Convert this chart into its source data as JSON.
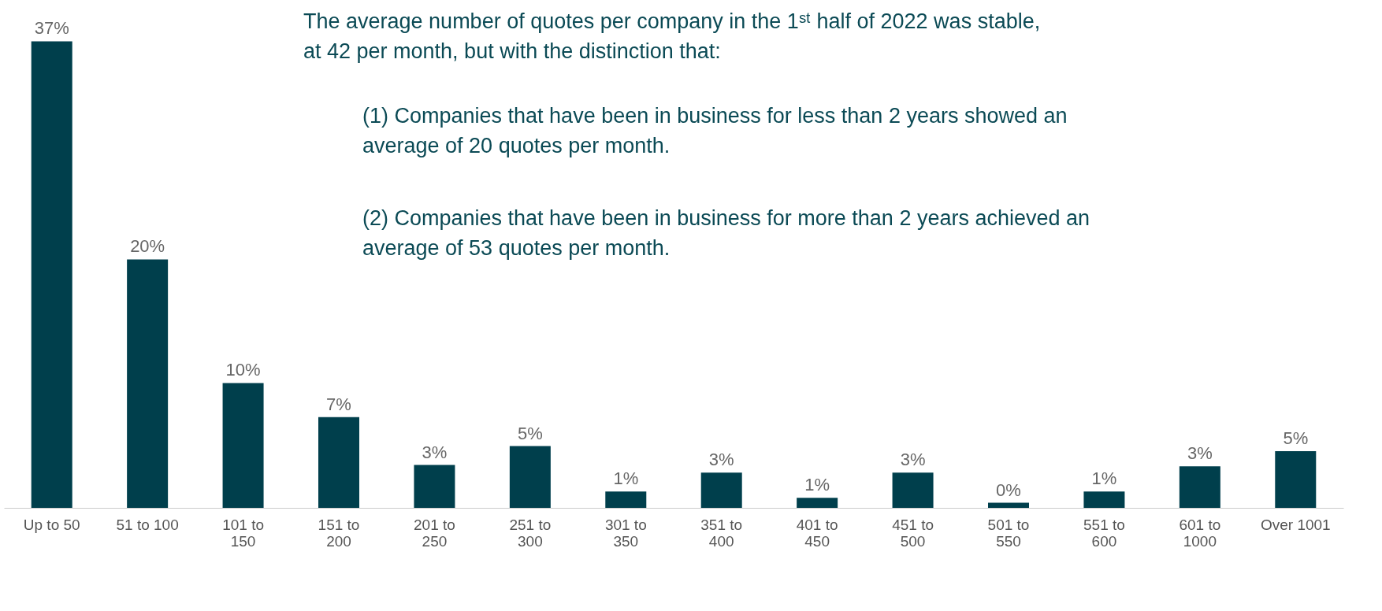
{
  "chart_data": {
    "type": "bar",
    "categories": [
      "Up to 50",
      "51 to 100",
      "101 to 150",
      "151 to 200",
      "201 to 250",
      "251 to 300",
      "301 to 350",
      "351 to 400",
      "401 to 450",
      "451 to 500",
      "501 to 550",
      "551 to 600",
      "601 to 1000",
      "Over 1001"
    ],
    "values": [
      37,
      19.7,
      9.9,
      7.2,
      3.4,
      4.9,
      1.3,
      2.8,
      0.8,
      2.8,
      0.4,
      1.3,
      3.3,
      4.5
    ],
    "value_labels": [
      "37%",
      "20%",
      "10%",
      "7%",
      "3%",
      "5%",
      "1%",
      "3%",
      "1%",
      "3%",
      "0%",
      "1%",
      "3%",
      "5%"
    ],
    "color": "#003f4c",
    "annotations": [
      "The average number of quotes per company in the 1ˢᵗ half of 2022 was stable, at 42 per month, but with the distinction that:",
      "(1) Companies that have been in business for less than 2 years showed an average of 20 quotes per month.",
      "(2) Companies that have been in business for more than 2 years achieved an average of 53 quotes per month."
    ]
  }
}
